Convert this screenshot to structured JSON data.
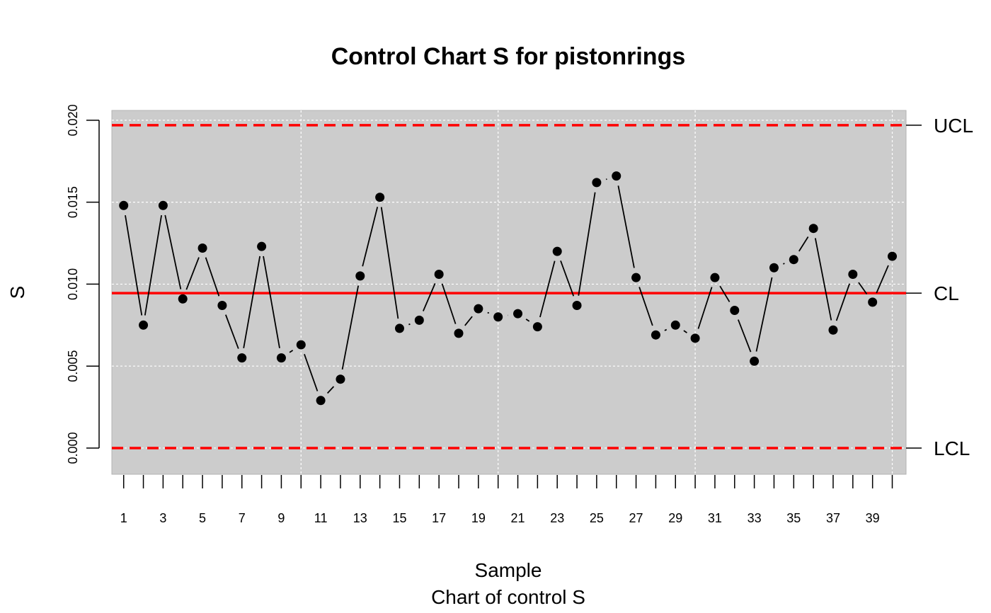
{
  "chart_data": {
    "type": "line",
    "title": "Control Chart S for pistonrings",
    "xlabel": "Sample",
    "subtitle": "Chart of control S",
    "ylabel": "S",
    "xlim": [
      0.4,
      40.7
    ],
    "ylim": [
      -0.0016,
      0.0206
    ],
    "yticks": [
      "0.000",
      "0.005",
      "0.010",
      "0.015",
      "0.020"
    ],
    "ytick_values": [
      0,
      0.005,
      0.01,
      0.015,
      0.02
    ],
    "xtick_labels": [
      "1",
      "3",
      "5",
      "7",
      "9",
      "11",
      "13",
      "15",
      "17",
      "19",
      "21",
      "23",
      "25",
      "27",
      "29",
      "31",
      "33",
      "35",
      "37",
      "39"
    ],
    "xtick_values": [
      1,
      3,
      5,
      7,
      9,
      11,
      13,
      15,
      17,
      19,
      21,
      23,
      25,
      27,
      29,
      31,
      33,
      35,
      37,
      39
    ],
    "x": [
      1,
      2,
      3,
      4,
      5,
      6,
      7,
      8,
      9,
      10,
      11,
      12,
      13,
      14,
      15,
      16,
      17,
      18,
      19,
      20,
      21,
      22,
      23,
      24,
      25,
      26,
      27,
      28,
      29,
      30,
      31,
      32,
      33,
      34,
      35,
      36,
      37,
      38,
      39,
      40
    ],
    "values": [
      0.0148,
      0.0075,
      0.0148,
      0.0091,
      0.0122,
      0.0087,
      0.0055,
      0.0123,
      0.0055,
      0.0063,
      0.0029,
      0.0042,
      0.0105,
      0.0153,
      0.0073,
      0.0078,
      0.0106,
      0.007,
      0.0085,
      0.008,
      0.0082,
      0.0074,
      0.012,
      0.0087,
      0.0162,
      0.0166,
      0.0104,
      0.0069,
      0.0075,
      0.0067,
      0.0104,
      0.0084,
      0.0053,
      0.011,
      0.0115,
      0.0134,
      0.0072,
      0.0106,
      0.0089,
      0.0117
    ],
    "limits": [
      {
        "label": "UCL",
        "value": 0.0197,
        "style": "dashed"
      },
      {
        "label": "CL",
        "value": 0.00945,
        "style": "solid"
      },
      {
        "label": "LCL",
        "value": 0.0,
        "style": "dashed"
      }
    ],
    "grid": true,
    "colors": {
      "panel": "#cccccc",
      "grid": "#ffffff",
      "limit": "#ff0000",
      "points": "#000000",
      "line": "#000000"
    }
  }
}
